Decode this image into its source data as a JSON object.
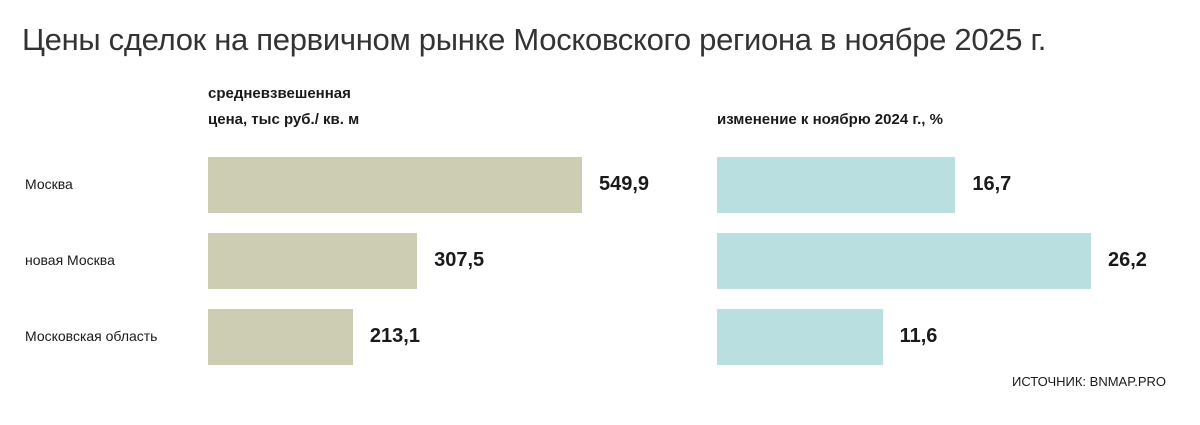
{
  "title": "Цены сделок на первичном рынке Московского региона в ноябре 2025 г.",
  "source": "ИСТОЧНИК: BNMAP.PRO",
  "chart_data": [
    {
      "type": "bar",
      "orientation": "horizontal",
      "title": "средневзвешенная\nцена, тыс руб./ кв. м",
      "categories": [
        "Москва",
        "новая Москва",
        "Московская область"
      ],
      "values": [
        549.9,
        307.5,
        213.1
      ],
      "value_labels": [
        "549,9",
        "307,5",
        "213,1"
      ],
      "color": "#cccdb3"
    },
    {
      "type": "bar",
      "orientation": "horizontal",
      "title": "изменение к ноябрю 2024 г., %",
      "values": [
        16.7,
        26.2,
        11.6
      ],
      "value_labels": [
        "16,7",
        "26,2",
        "11,6"
      ],
      "color": "#badfe0"
    }
  ]
}
